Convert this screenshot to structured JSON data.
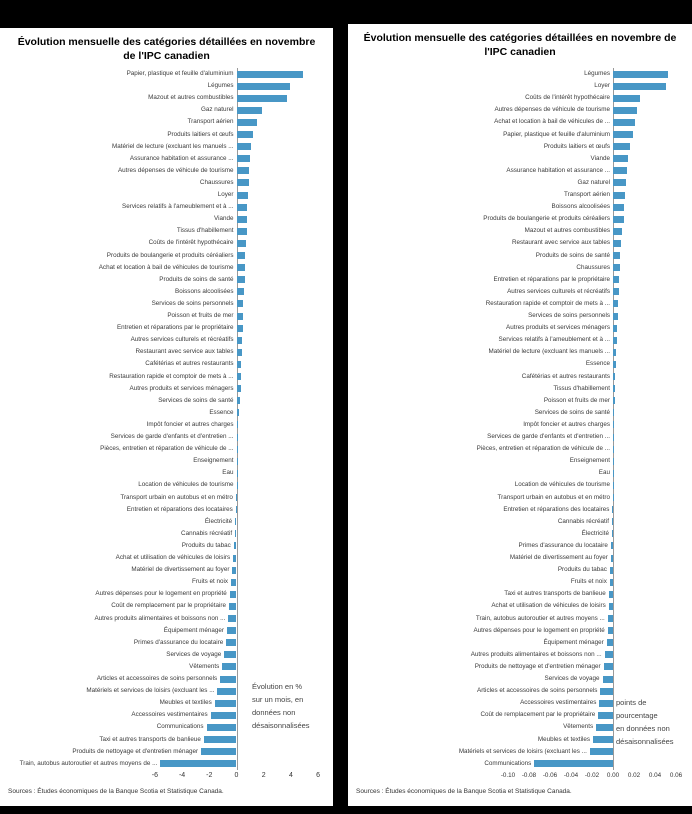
{
  "bar_color": "#4897C6",
  "axis_color": "#9a9a9a",
  "chart_data": [
    {
      "type": "bar",
      "orientation": "horizontal",
      "title": "Évolution mensuelle des catégories détaillées en novembre de l'IPC canadien",
      "annotation": "Évolution en %\nsur un mois, en\ndonnées non\ndésaisonnalisées",
      "source": "Sources : Études économiques de la Banque Scotia et Statistique Canada.",
      "bar_color": "#4897C6",
      "xlim": [
        -6,
        6
      ],
      "x_ticks": [
        "-6",
        "-4",
        "-2",
        "0",
        "2",
        "4",
        "6"
      ],
      "xlabel": "",
      "ylabel": "",
      "categories": [
        "Papier, plastique et feuille d'aluminium",
        "Légumes",
        "Mazout et autres combustibles",
        "Gaz naturel",
        "Transport aérien",
        "Produits laitiers et œufs",
        "Matériel de lecture (excluant les manuels ...",
        "Assurance habitation et assurance ...",
        "Autres dépenses de véhicule de tourisme",
        "Chaussures",
        "Loyer",
        "Services relatifs à l'ameublement et à ...",
        "Viande",
        "Tissus d'habillement",
        "Coûts de l'intérêt hypothécaire",
        "Produits de boulangerie et produits céréaliers",
        "Achat et location à bail de véhicules de tourisme",
        "Produits de soins de santé",
        "Boissons alcoolisées",
        "Services de soins personnels",
        "Poisson et fruits de mer",
        "Entretien et réparations par le propriétaire",
        "Autres services culturels et récréatifs",
        "Restaurant avec service aux tables",
        "Cafétérias et autres restaurants",
        "Restauration rapide et comptoir de mets à ...",
        "Autres produits et services ménagers",
        "Services de soins de santé",
        "Essence",
        "Impôt foncier et autres charges",
        "Services de garde d'enfants et d'entretien ...",
        "Pièces, entretien et réparation de véhicule de ...",
        "Enseignement",
        "Eau",
        "Location de véhicules de tourisme",
        "Transport urbain en autobus et en métro",
        "Entretien et réparations des locataires",
        "Électricité",
        "Cannabis récréatif",
        "Produits du tabac",
        "Achat et utilisation de véhicules de loisirs",
        "Matériel de divertissement au foyer",
        "Fruits et noix",
        "Autres dépenses pour le logement en propriété",
        "Coût de remplacement par le propriétaire",
        "Autres produits alimentaires et boissons non ...",
        "Équipement ménager",
        "Primes d'assurance du locataire",
        "Services de voyage",
        "Vêtements",
        "Articles et accessoires de soins personnels",
        "Matériels et services de loisirs (excluant les ...",
        "Meubles et textiles",
        "Accessoires vestimentaires",
        "Communications",
        "Taxi et autres transports de banlieue",
        "Produits de nettoyage et d'entretien ménager",
        "Train, autobus autoroutier et autres moyens de ..."
      ],
      "values": [
        4.9,
        3.9,
        3.7,
        1.9,
        1.5,
        1.2,
        1.1,
        1.0,
        0.95,
        0.9,
        0.85,
        0.8,
        0.8,
        0.75,
        0.7,
        0.65,
        0.6,
        0.6,
        0.55,
        0.5,
        0.5,
        0.45,
        0.4,
        0.4,
        0.35,
        0.3,
        0.3,
        0.25,
        0.2,
        0.1,
        0.1,
        0.05,
        0.05,
        0.0,
        0.0,
        -0.05,
        -0.05,
        -0.1,
        -0.1,
        -0.2,
        -0.25,
        -0.3,
        -0.4,
        -0.5,
        -0.55,
        -0.6,
        -0.7,
        -0.75,
        -0.9,
        -1.05,
        -1.2,
        -1.4,
        -1.6,
        -1.9,
        -2.2,
        -2.4,
        -2.6,
        -5.6
      ]
    },
    {
      "type": "bar",
      "orientation": "horizontal",
      "title": "Évolution mensuelle des catégories détaillées en novembre de l'IPC canadien",
      "annotation": "points de\npourcentage\nen données non\ndésaisonnalisées",
      "source": "Sources : Études économiques de la Banque Scotia et Statistique Canada.",
      "bar_color": "#4897C6",
      "xlim": [
        -0.1,
        0.06
      ],
      "x_ticks": [
        "-0.10",
        "-0.08",
        "-0.06",
        "-0.04",
        "-0.02",
        "0.00",
        "0.02",
        "0.04",
        "0.06"
      ],
      "xlabel": "",
      "ylabel": "",
      "categories": [
        "Légumes",
        "Loyer",
        "Coûts de l'intérêt hypothécaire",
        "Autres dépenses de véhicule de tourisme",
        "Achat et location à bail de véhicules de ...",
        "Papier, plastique et feuille d'aluminium",
        "Produits laitiers et œufs",
        "Viande",
        "Assurance habitation et assurance ...",
        "Gaz naturel",
        "Transport aérien",
        "Boissons alcoolisées",
        "Produits de boulangerie et produits céréaliers",
        "Mazout et autres combustibles",
        "Restaurant avec service aux tables",
        "Produits de soins de santé",
        "Chaussures",
        "Entretien et réparations par le propriétaire",
        "Autres services culturels et récréatifs",
        "Restauration rapide et comptoir de mets à ...",
        "Services de soins personnels",
        "Autres produits et services ménagers",
        "Services relatifs à l'ameublement et à ...",
        "Matériel de lecture (excluant les manuels ...",
        "Essence",
        "Cafétérias et autres restaurants",
        "Tissus d'habillement",
        "Poisson et fruits de mer",
        "Services de soins de santé",
        "Impôt foncier et autres charges",
        "Services de garde d'enfants et d'entretien ...",
        "Pièces, entretien et réparation de véhicule de ...",
        "Enseignement",
        "Eau",
        "Location de véhicules de tourisme",
        "Transport urbain en autobus et en métro",
        "Entretien et réparations des locataires",
        "Cannabis récréatif",
        "Électricité",
        "Primes d'assurance du locataire",
        "Matériel de divertissement au foyer",
        "Produits du tabac",
        "Fruits et noix",
        "Taxi et autres transports de banlieue",
        "Achat et utilisation de véhicules de loisirs",
        "Train, autobus autoroutier et autres moyens ...",
        "Autres dépenses pour le logement en propriété",
        "Équipement ménager",
        "Autres produits alimentaires et boissons non ...",
        "Produits de nettoyage et d'entretien ménager",
        "Services de voyage",
        "Articles et accessoires de soins personnels",
        "Accessoires vestimentaires",
        "Coût de remplacement par le propriétaire",
        "Vêtements",
        "Meubles et textiles",
        "Matériels et services de loisirs (excluant les ...",
        "Communications"
      ],
      "values": [
        0.052,
        0.05,
        0.026,
        0.023,
        0.021,
        0.019,
        0.016,
        0.014,
        0.013,
        0.012,
        0.011,
        0.01,
        0.01,
        0.009,
        0.008,
        0.007,
        0.007,
        0.006,
        0.006,
        0.005,
        0.005,
        0.004,
        0.004,
        0.003,
        0.003,
        0.002,
        0.002,
        0.002,
        0.001,
        0.001,
        0.001,
        0.001,
        0.0005,
        0.0,
        0.0,
        0.0,
        -0.0005,
        -0.001,
        -0.001,
        -0.002,
        -0.002,
        -0.003,
        -0.003,
        -0.004,
        -0.004,
        -0.005,
        -0.005,
        -0.006,
        -0.008,
        -0.009,
        -0.01,
        -0.012,
        -0.013,
        -0.014,
        -0.016,
        -0.019,
        -0.022,
        -0.075
      ]
    }
  ]
}
